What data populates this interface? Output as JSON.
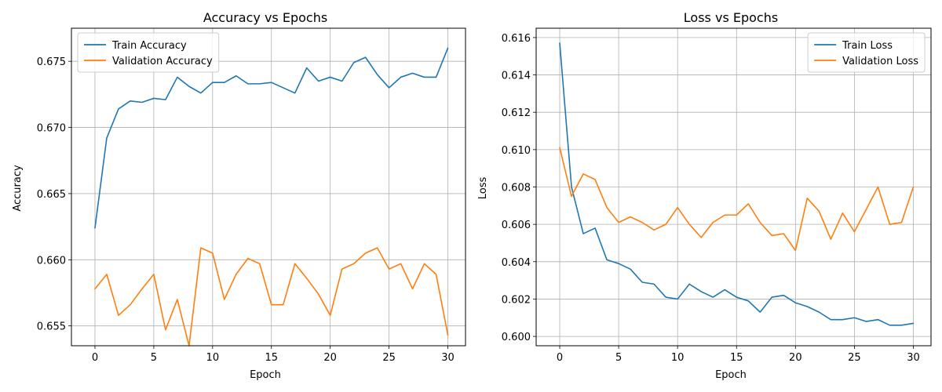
{
  "chart_data": [
    {
      "type": "line",
      "title": "Accuracy vs Epochs",
      "xlabel": "Epoch",
      "ylabel": "Accuracy",
      "xlim": [
        -2,
        31.5
      ],
      "ylim": [
        0.6535,
        0.6775
      ],
      "xticks": [
        0,
        5,
        10,
        15,
        20,
        25,
        30
      ],
      "yticks": [
        0.655,
        0.66,
        0.665,
        0.67,
        0.675
      ],
      "ytick_decimals": 3,
      "grid": true,
      "legend": "top-left",
      "x": [
        0,
        1,
        2,
        3,
        4,
        5,
        6,
        7,
        8,
        9,
        10,
        11,
        12,
        13,
        14,
        15,
        16,
        17,
        18,
        19,
        20,
        21,
        22,
        23,
        24,
        25,
        26,
        27,
        28,
        29,
        30
      ],
      "series": [
        {
          "name": "Train Accuracy",
          "color": "#1f77b4",
          "values": [
            0.6624,
            0.6692,
            0.6714,
            0.672,
            0.6719,
            0.6722,
            0.6721,
            0.6738,
            0.6731,
            0.6726,
            0.6734,
            0.6734,
            0.6739,
            0.6733,
            0.6733,
            0.6734,
            0.673,
            0.6726,
            0.6745,
            0.6735,
            0.6738,
            0.6735,
            0.6749,
            0.6753,
            0.674,
            0.673,
            0.6738,
            0.6741,
            0.6738,
            0.6738,
            0.676
          ]
        },
        {
          "name": "Validation Accuracy",
          "color": "#ff7f0e",
          "values": [
            0.6578,
            0.6589,
            0.6558,
            0.6566,
            0.6578,
            0.6589,
            0.6547,
            0.657,
            0.6535,
            0.6609,
            0.6605,
            0.657,
            0.6589,
            0.6601,
            0.6597,
            0.6566,
            0.6566,
            0.6597,
            0.6586,
            0.6574,
            0.6558,
            0.6593,
            0.6597,
            0.6605,
            0.6609,
            0.6593,
            0.6597,
            0.6578,
            0.6597,
            0.6589,
            0.6543
          ]
        }
      ]
    },
    {
      "type": "line",
      "title": "Loss vs Epochs",
      "xlabel": "Epoch",
      "ylabel": "Loss",
      "xlim": [
        -2,
        31.5
      ],
      "ylim": [
        0.5995,
        0.6165
      ],
      "xticks": [
        0,
        5,
        10,
        15,
        20,
        25,
        30
      ],
      "yticks": [
        0.6,
        0.602,
        0.604,
        0.606,
        0.608,
        0.61,
        0.612,
        0.614,
        0.616
      ],
      "ytick_decimals": 3,
      "grid": true,
      "legend": "top-right",
      "x": [
        0,
        1,
        2,
        3,
        4,
        5,
        6,
        7,
        8,
        9,
        10,
        11,
        12,
        13,
        14,
        15,
        16,
        17,
        18,
        19,
        20,
        21,
        22,
        23,
        24,
        25,
        26,
        27,
        28,
        29,
        30
      ],
      "series": [
        {
          "name": "Train Loss",
          "color": "#1f77b4",
          "values": [
            0.6157,
            0.608,
            0.6055,
            0.6058,
            0.6041,
            0.6039,
            0.6036,
            0.6029,
            0.6028,
            0.6021,
            0.602,
            0.6028,
            0.6024,
            0.6021,
            0.6025,
            0.6021,
            0.6019,
            0.6013,
            0.6021,
            0.6022,
            0.6018,
            0.6016,
            0.6013,
            0.6009,
            0.6009,
            0.601,
            0.6008,
            0.6009,
            0.6006,
            0.6006,
            0.6007
          ]
        },
        {
          "name": "Validation Loss",
          "color": "#ff7f0e",
          "values": [
            0.6101,
            0.6075,
            0.6087,
            0.6084,
            0.6069,
            0.6061,
            0.6064,
            0.6061,
            0.6057,
            0.606,
            0.6069,
            0.606,
            0.6053,
            0.6061,
            0.6065,
            0.6065,
            0.6071,
            0.6061,
            0.6054,
            0.6055,
            0.6046,
            0.6074,
            0.6067,
            0.6052,
            0.6066,
            0.6056,
            0.6068,
            0.608,
            0.606,
            0.6061,
            0.608
          ]
        }
      ]
    }
  ]
}
